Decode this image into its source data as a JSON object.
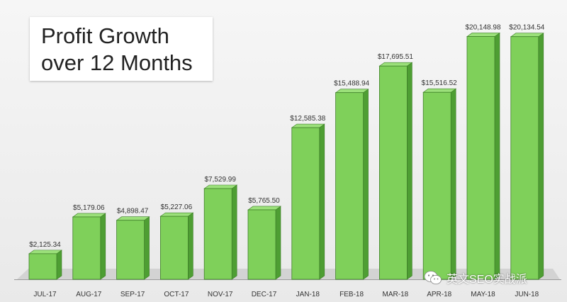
{
  "chart_data": {
    "type": "bar",
    "title": "Profit Growth over 12 Months",
    "title_lines": [
      "Profit Growth",
      "over 12 Months"
    ],
    "categories": [
      "JUL-17",
      "AUG-17",
      "SEP-17",
      "OCT-17",
      "NOV-17",
      "DEC-17",
      "JAN-18",
      "FEB-18",
      "MAR-18",
      "APR-18",
      "MAY-18",
      "JUN-18"
    ],
    "values": [
      2125.34,
      5179.06,
      4898.47,
      5227.06,
      7529.99,
      5765.5,
      12585.38,
      15488.94,
      17695.51,
      15516.52,
      20148.98,
      20134.54
    ],
    "value_labels": [
      "$2,125.34",
      "$5,179.06",
      "$4,898.47",
      "$5,227.06",
      "$7,529.99",
      "$5,765.50",
      "$12,585.38",
      "$15,488.94",
      "$17,695.51",
      "$15,516.52",
      "$20,148.98",
      "$20,134.54"
    ],
    "xlabel": "",
    "ylabel": "",
    "ylim": [
      0,
      22000
    ],
    "grid": false,
    "colors": {
      "bar_face": "#7fd05a",
      "bar_side": "#4e9e33",
      "bar_top": "#9be07a",
      "bar_edge": "#3e7f28",
      "floor": "#c9c9c9"
    }
  },
  "watermark": {
    "icon": "wechat-icon",
    "text": "英文SEO实战派"
  }
}
